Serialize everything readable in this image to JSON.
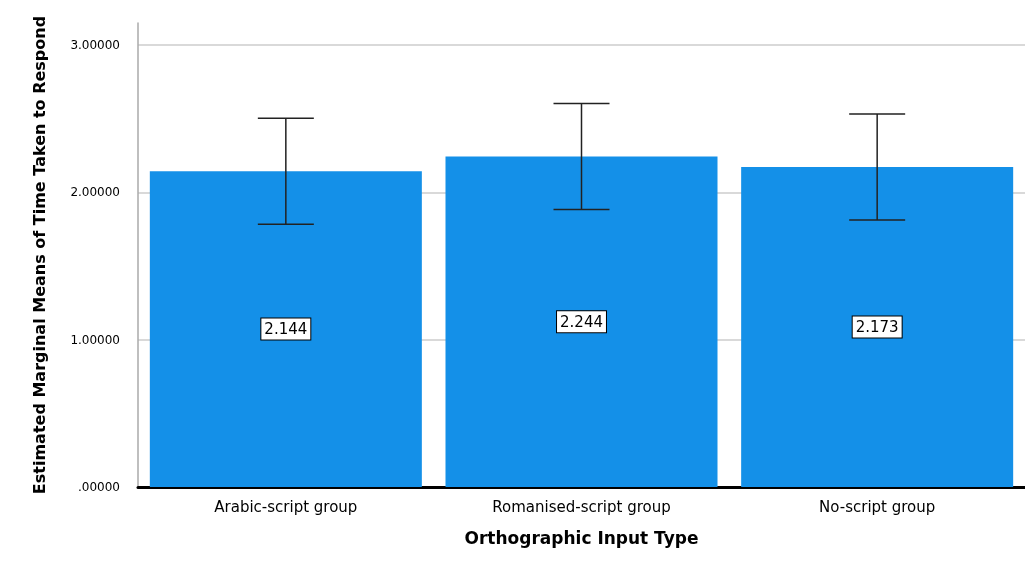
{
  "chart_data": {
    "type": "bar",
    "xlabel": "Orthographic Input Type",
    "ylabel": "Estimated Marginal Means of Time Taken to Respond",
    "categories": [
      "Arabic-script group",
      "Romanised-script group",
      "No-script group"
    ],
    "values": [
      2.144,
      2.244,
      2.173
    ],
    "color": "#1490e8",
    "errors": [
      0.36,
      0.36,
      0.36
    ],
    "data_labels": true,
    "ylim": [
      0,
      3.15
    ],
    "yticks": [
      {
        "value": 0,
        "label": ".00000"
      },
      {
        "value": 1,
        "label": "1.00000"
      },
      {
        "value": 2,
        "label": "2.00000"
      },
      {
        "value": 3,
        "label": "3.00000"
      }
    ],
    "grid": "y"
  }
}
